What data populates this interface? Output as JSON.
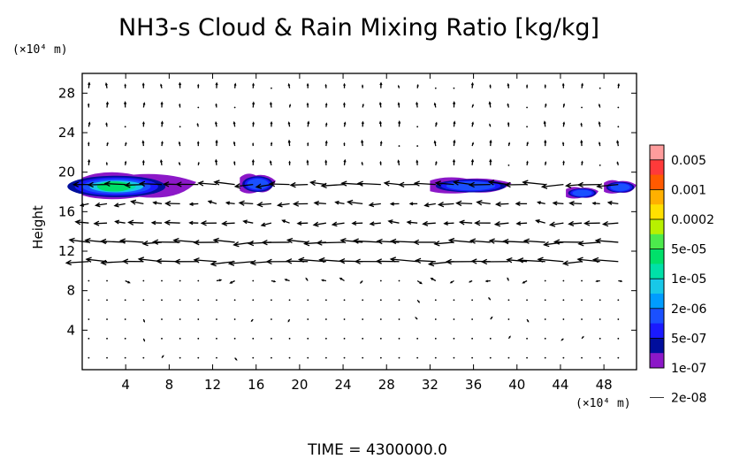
{
  "chart_data": {
    "type": "heatmap",
    "title": "NH3-s Cloud & Rain Mixing Ratio [kg/kg]",
    "xlabel": "",
    "ylabel": "Height",
    "x_unit": "(×10⁴ m)",
    "y_unit": "(×10⁴ m)",
    "xlim": [
      0,
      51
    ],
    "ylim": [
      0,
      30
    ],
    "x_ticks": [
      4,
      8,
      12,
      16,
      20,
      24,
      28,
      32,
      36,
      40,
      44,
      48
    ],
    "y_ticks": [
      4,
      8,
      12,
      16,
      20,
      24,
      28
    ],
    "colorbar": {
      "labels": [
        "0.005",
        "0.001",
        "0.0002",
        "5e-05",
        "1e-05",
        "2e-06",
        "5e-07",
        "1e-07",
        "2e-08"
      ],
      "colors": [
        "#ff9c9c",
        "#ff3a3a",
        "#ff5a00",
        "#ffb000",
        "#ffe000",
        "#b8f000",
        "#4cea4c",
        "#00e06a",
        "#00e0a8",
        "#18c8e8",
        "#009cff",
        "#1a50ff",
        "#1a1aff",
        "#000e9c",
        "#8c18c8"
      ]
    },
    "cloud_regions": [
      {
        "x_start": 0,
        "x_end": 10.5,
        "y_bottom": 17.2,
        "y_top": 20.2,
        "max_level": "5e-05"
      },
      {
        "x_start": 14.5,
        "x_end": 17.8,
        "y_bottom": 17.8,
        "y_top": 20.0,
        "max_level": "1e-07"
      },
      {
        "x_start": 32.0,
        "x_end": 39.5,
        "y_bottom": 17.8,
        "y_top": 19.6,
        "max_level": "1e-07"
      },
      {
        "x_start": 44.5,
        "x_end": 47.5,
        "y_bottom": 17.3,
        "y_top": 18.6,
        "max_level": "5e-07"
      },
      {
        "x_start": 48.0,
        "x_end": 51.0,
        "y_bottom": 17.8,
        "y_top": 19.3,
        "max_level": "1e-07"
      }
    ],
    "wind_jets": [
      {
        "y": 19.0,
        "direction": "west",
        "strength": 0.7
      },
      {
        "y": 16.0,
        "direction": "west",
        "strength": 1.0
      },
      {
        "y": 14.0,
        "direction": "west",
        "strength": 1.0
      },
      {
        "y": 12.5,
        "direction": "west",
        "strength": 0.9
      },
      {
        "y": 11.0,
        "direction": "west",
        "strength": 0.7
      }
    ]
  },
  "time_label": "TIME  =  4300000.0"
}
